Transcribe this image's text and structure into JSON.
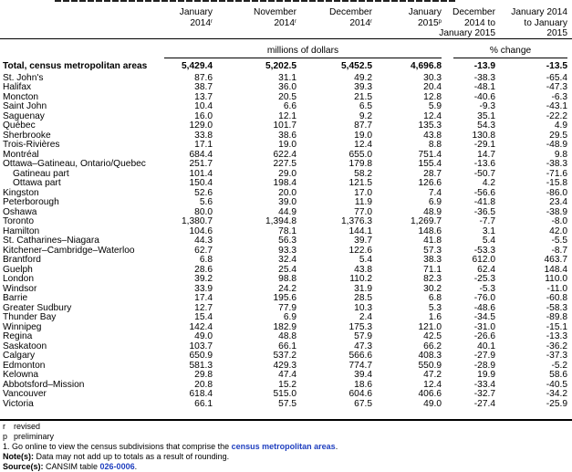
{
  "columns": [
    {
      "line1": "January",
      "line2": "2014",
      "sup": "r"
    },
    {
      "line1": "November",
      "line2": "2014",
      "sup": "r"
    },
    {
      "line1": "December",
      "line2": "2014",
      "sup": "r"
    },
    {
      "line1": "January",
      "line2": "2015",
      "sup": "p"
    },
    {
      "line1": "December",
      "line2": "2014 to",
      "line3": "January 2015"
    },
    {
      "line1": "January 2014",
      "line2": "to January",
      "line3": "2015"
    }
  ],
  "units": {
    "dollars": "millions of dollars",
    "change": "% change"
  },
  "total": {
    "label": "Total, census metropolitan areas",
    "values": [
      "5,429.4",
      "5,202.5",
      "5,452.5",
      "4,696.8",
      "-13.9",
      "-13.5"
    ]
  },
  "rows": [
    {
      "label": "St. John's",
      "values": [
        "87.6",
        "31.1",
        "49.2",
        "30.3",
        "-38.3",
        "-65.4"
      ]
    },
    {
      "label": "Halifax",
      "values": [
        "38.7",
        "36.0",
        "39.3",
        "20.4",
        "-48.1",
        "-47.3"
      ]
    },
    {
      "label": "Moncton",
      "values": [
        "13.7",
        "20.5",
        "21.5",
        "12.8",
        "-40.6",
        "-6.3"
      ]
    },
    {
      "label": "Saint John",
      "values": [
        "10.4",
        "6.6",
        "6.5",
        "5.9",
        "-9.3",
        "-43.1"
      ]
    },
    {
      "label": "Saguenay",
      "values": [
        "16.0",
        "12.1",
        "9.2",
        "12.4",
        "35.1",
        "-22.2"
      ]
    },
    {
      "label": "Québec",
      "values": [
        "129.0",
        "101.7",
        "87.7",
        "135.3",
        "54.3",
        "4.9"
      ]
    },
    {
      "label": "Sherbrooke",
      "values": [
        "33.8",
        "38.6",
        "19.0",
        "43.8",
        "130.8",
        "29.5"
      ]
    },
    {
      "label": "Trois-Rivières",
      "values": [
        "17.1",
        "19.0",
        "12.4",
        "8.8",
        "-29.1",
        "-48.9"
      ]
    },
    {
      "label": "Montréal",
      "values": [
        "684.4",
        "622.4",
        "655.0",
        "751.4",
        "14.7",
        "9.8"
      ]
    },
    {
      "label": "Ottawa–Gatineau, Ontario/Quebec",
      "values": [
        "251.7",
        "227.5",
        "179.8",
        "155.4",
        "-13.6",
        "-38.3"
      ]
    },
    {
      "label": "Gatineau part",
      "indent": true,
      "values": [
        "101.4",
        "29.0",
        "58.2",
        "28.7",
        "-50.7",
        "-71.6"
      ]
    },
    {
      "label": "Ottawa part",
      "indent": true,
      "values": [
        "150.4",
        "198.4",
        "121.5",
        "126.6",
        "4.2",
        "-15.8"
      ]
    },
    {
      "label": "Kingston",
      "values": [
        "52.6",
        "20.0",
        "17.0",
        "7.4",
        "-56.6",
        "-86.0"
      ]
    },
    {
      "label": "Peterborough",
      "values": [
        "5.6",
        "39.0",
        "11.9",
        "6.9",
        "-41.8",
        "23.4"
      ]
    },
    {
      "label": "Oshawa",
      "values": [
        "80.0",
        "44.9",
        "77.0",
        "48.9",
        "-36.5",
        "-38.9"
      ]
    },
    {
      "label": "Toronto",
      "values": [
        "1,380.7",
        "1,394.8",
        "1,376.3",
        "1,269.7",
        "-7.7",
        "-8.0"
      ]
    },
    {
      "label": "Hamilton",
      "values": [
        "104.6",
        "78.1",
        "144.1",
        "148.6",
        "3.1",
        "42.0"
      ]
    },
    {
      "label": "St. Catharines–Niagara",
      "values": [
        "44.3",
        "56.3",
        "39.7",
        "41.8",
        "5.4",
        "-5.5"
      ]
    },
    {
      "label": "Kitchener–Cambridge–Waterloo",
      "values": [
        "62.7",
        "93.3",
        "122.6",
        "57.3",
        "-53.3",
        "-8.7"
      ]
    },
    {
      "label": "Brantford",
      "values": [
        "6.8",
        "32.4",
        "5.4",
        "38.3",
        "612.0",
        "463.7"
      ]
    },
    {
      "label": "Guelph",
      "values": [
        "28.6",
        "25.4",
        "43.8",
        "71.1",
        "62.4",
        "148.4"
      ]
    },
    {
      "label": "London",
      "values": [
        "39.2",
        "98.8",
        "110.2",
        "82.3",
        "-25.3",
        "110.0"
      ]
    },
    {
      "label": "Windsor",
      "values": [
        "33.9",
        "24.2",
        "31.9",
        "30.2",
        "-5.3",
        "-11.0"
      ]
    },
    {
      "label": "Barrie",
      "values": [
        "17.4",
        "195.6",
        "28.5",
        "6.8",
        "-76.0",
        "-60.8"
      ]
    },
    {
      "label": "Greater Sudbury",
      "values": [
        "12.7",
        "77.9",
        "10.3",
        "5.3",
        "-48.6",
        "-58.3"
      ]
    },
    {
      "label": "Thunder Bay",
      "values": [
        "15.4",
        "6.9",
        "2.4",
        "1.6",
        "-34.5",
        "-89.8"
      ]
    },
    {
      "label": "Winnipeg",
      "values": [
        "142.4",
        "182.9",
        "175.3",
        "121.0",
        "-31.0",
        "-15.1"
      ]
    },
    {
      "label": "Regina",
      "values": [
        "49.0",
        "48.8",
        "57.9",
        "42.5",
        "-26.6",
        "-13.3"
      ]
    },
    {
      "label": "Saskatoon",
      "values": [
        "103.7",
        "66.1",
        "47.3",
        "66.2",
        "40.1",
        "-36.2"
      ]
    },
    {
      "label": "Calgary",
      "values": [
        "650.9",
        "537.2",
        "566.6",
        "408.3",
        "-27.9",
        "-37.3"
      ]
    },
    {
      "label": "Edmonton",
      "values": [
        "581.3",
        "429.3",
        "774.7",
        "550.9",
        "-28.9",
        "-5.2"
      ]
    },
    {
      "label": "Kelowna",
      "values": [
        "29.8",
        "47.4",
        "39.4",
        "47.2",
        "19.9",
        "58.6"
      ]
    },
    {
      "label": "Abbotsford–Mission",
      "values": [
        "20.8",
        "15.2",
        "18.6",
        "12.4",
        "-33.4",
        "-40.5"
      ]
    },
    {
      "label": "Vancouver",
      "values": [
        "618.4",
        "515.0",
        "604.6",
        "406.6",
        "-32.7",
        "-34.2"
      ]
    },
    {
      "label": "Victoria",
      "values": [
        "66.1",
        "57.5",
        "67.5",
        "49.0",
        "-27.4",
        "-25.9"
      ]
    }
  ],
  "footnotes": {
    "r_mark": "r",
    "r_text": "revised",
    "p_mark": "p",
    "p_text": "preliminary",
    "one_text": "1.  Go online to view the census subdivisions that comprise the ",
    "one_link": "census metropolitan areas",
    "note_label": "Note(s):",
    "note_text": "  Data may not add up to totals as a result of rounding.",
    "source_label": "Source(s):",
    "source_text": "  CANSIM table ",
    "source_link": "026-0006"
  },
  "colors": {
    "link": "#1f3fbf"
  }
}
